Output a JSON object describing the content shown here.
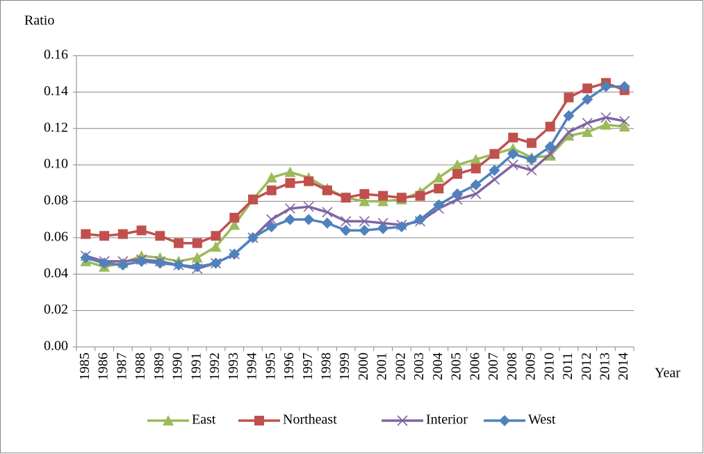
{
  "chart_data": {
    "type": "line",
    "y_label": "Ratio",
    "x_label": "Year",
    "categories": [
      "1985",
      "1986",
      "1987",
      "1988",
      "1989",
      "1990",
      "1991",
      "1992",
      "1993",
      "1994",
      "1995",
      "1996",
      "1997",
      "1998",
      "1999",
      "2000",
      "2001",
      "2002",
      "2003",
      "2004",
      "2005",
      "2006",
      "2007",
      "2008",
      "2009",
      "2010",
      "2011",
      "2012",
      "2013",
      "2014"
    ],
    "series": [
      {
        "name": "East",
        "color": "#9bbb59",
        "marker": "triangle",
        "values": [
          0.047,
          0.044,
          0.046,
          0.05,
          0.049,
          0.047,
          0.049,
          0.055,
          0.067,
          0.081,
          0.093,
          0.096,
          0.093,
          0.087,
          0.082,
          0.08,
          0.08,
          0.081,
          0.085,
          0.093,
          0.1,
          0.103,
          0.106,
          0.109,
          0.104,
          0.105,
          0.116,
          0.118,
          0.122,
          0.121
        ]
      },
      {
        "name": "Northeast",
        "color": "#c0504d",
        "marker": "square",
        "values": [
          0.062,
          0.061,
          0.062,
          0.064,
          0.061,
          0.057,
          0.057,
          0.061,
          0.071,
          0.081,
          0.086,
          0.09,
          0.091,
          0.086,
          0.082,
          0.084,
          0.083,
          0.082,
          0.083,
          0.087,
          0.095,
          0.098,
          0.106,
          0.115,
          0.112,
          0.121,
          0.137,
          0.142,
          0.145,
          0.141
        ]
      },
      {
        "name": "Interior",
        "color": "#8064a2",
        "marker": "x",
        "values": [
          0.05,
          0.047,
          0.047,
          0.048,
          0.047,
          0.045,
          0.043,
          0.046,
          0.051,
          0.06,
          0.07,
          0.076,
          0.077,
          0.074,
          0.069,
          0.069,
          0.068,
          0.067,
          0.069,
          0.076,
          0.081,
          0.084,
          0.092,
          0.1,
          0.097,
          0.106,
          0.118,
          0.123,
          0.126,
          0.124
        ]
      },
      {
        "name": "West",
        "color": "#4f81bd",
        "marker": "diamond",
        "values": [
          0.049,
          0.046,
          0.045,
          0.047,
          0.046,
          0.045,
          0.044,
          0.046,
          0.051,
          0.06,
          0.066,
          0.07,
          0.07,
          0.068,
          0.064,
          0.064,
          0.065,
          0.066,
          0.07,
          0.078,
          0.084,
          0.089,
          0.097,
          0.106,
          0.103,
          0.11,
          0.127,
          0.136,
          0.143,
          0.143
        ]
      }
    ],
    "ylim": [
      0,
      0.16
    ],
    "yticks": [
      {
        "value": 0,
        "label": "0.00"
      },
      {
        "value": 0.02,
        "label": "0.02"
      },
      {
        "value": 0.04,
        "label": "0.04"
      },
      {
        "value": 0.06,
        "label": "0.06"
      },
      {
        "value": 0.08,
        "label": "0.08"
      },
      {
        "value": 0.1,
        "label": "0.10"
      },
      {
        "value": 0.12,
        "label": "0.12"
      },
      {
        "value": 0.14,
        "label": "0.14"
      },
      {
        "value": 0.16,
        "label": "0.16"
      }
    ],
    "grid": true,
    "legend": "bottom"
  }
}
